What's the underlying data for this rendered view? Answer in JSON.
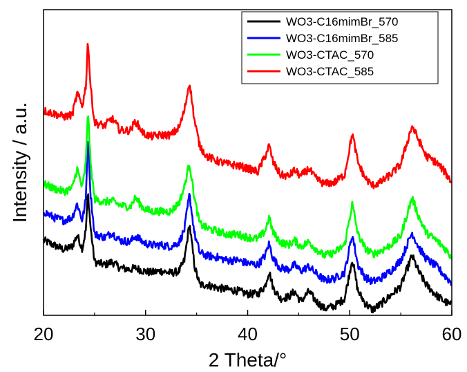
{
  "chart_data": {
    "type": "line",
    "title": "",
    "xlabel": "2 Theta/°",
    "ylabel": "Intensity / a.u.",
    "xlim": [
      20,
      60
    ],
    "ylim": [
      0,
      100
    ],
    "x_ticks": [
      20,
      30,
      40,
      50,
      60
    ],
    "y_ticks_shown": false,
    "grid": false,
    "legend_position": "top-right",
    "series": [
      {
        "name": "WO3-C16mimBr_570",
        "color": "#000000",
        "values": [
          [
            20,
            24.5
          ],
          [
            21,
            23.0
          ],
          [
            22,
            21.5
          ],
          [
            22.8,
            22.5
          ],
          [
            23.3,
            26.2
          ],
          [
            23.8,
            21.8
          ],
          [
            24.15,
            28.0
          ],
          [
            24.35,
            40.5
          ],
          [
            24.6,
            29.0
          ],
          [
            25.0,
            17.5
          ],
          [
            26,
            16.5
          ],
          [
            26.7,
            17.5
          ],
          [
            27.5,
            15.5
          ],
          [
            28.5,
            15.0
          ],
          [
            29.0,
            15.5
          ],
          [
            29.8,
            14.5
          ],
          [
            30.5,
            14.0
          ],
          [
            31.5,
            14.5
          ],
          [
            32.5,
            13.8
          ],
          [
            33.3,
            14.5
          ],
          [
            33.8,
            18.0
          ],
          [
            34.3,
            30.0
          ],
          [
            34.8,
            16.0
          ],
          [
            35.3,
            10.0
          ],
          [
            36,
            10.0
          ],
          [
            37,
            9.0
          ],
          [
            38,
            8.5
          ],
          [
            39,
            8.0
          ],
          [
            40,
            7.0
          ],
          [
            41,
            7.0
          ],
          [
            41.7,
            9.5
          ],
          [
            42.1,
            14.5
          ],
          [
            42.5,
            9.0
          ],
          [
            43.2,
            5.5
          ],
          [
            44.0,
            6.0
          ],
          [
            44.6,
            7.8
          ],
          [
            45.2,
            4.5
          ],
          [
            46.0,
            7.8
          ],
          [
            46.6,
            5.0
          ],
          [
            47.5,
            2.2
          ],
          [
            48.5,
            3.0
          ],
          [
            49.5,
            5.5
          ],
          [
            50.25,
            18.5
          ],
          [
            50.8,
            8.0
          ],
          [
            51.5,
            4.0
          ],
          [
            52.2,
            1.8
          ],
          [
            53.0,
            3.5
          ],
          [
            54.0,
            6.5
          ],
          [
            55.0,
            9.5
          ],
          [
            56.1,
            19.5
          ],
          [
            56.8,
            14.0
          ],
          [
            57.5,
            10.0
          ],
          [
            58.5,
            6.5
          ],
          [
            59.3,
            4.5
          ],
          [
            60,
            3.2
          ]
        ]
      },
      {
        "name": "WO3-C16mimBr_585",
        "color": "#0000ff",
        "values": [
          [
            20,
            34.0
          ],
          [
            21,
            32.0
          ],
          [
            22,
            31.0
          ],
          [
            22.8,
            32.0
          ],
          [
            23.3,
            36.5
          ],
          [
            23.8,
            31.0
          ],
          [
            24.15,
            38.0
          ],
          [
            24.35,
            60.0
          ],
          [
            24.6,
            40.0
          ],
          [
            25.0,
            26.5
          ],
          [
            26,
            25.5
          ],
          [
            26.7,
            27.0
          ],
          [
            27.5,
            24.5
          ],
          [
            28.5,
            24.0
          ],
          [
            29.0,
            26.0
          ],
          [
            29.8,
            23.8
          ],
          [
            30.5,
            23.0
          ],
          [
            31.5,
            23.0
          ],
          [
            32.5,
            22.5
          ],
          [
            33.3,
            24.0
          ],
          [
            33.8,
            28.0
          ],
          [
            34.3,
            39.5
          ],
          [
            34.8,
            26.5
          ],
          [
            35.3,
            20.5
          ],
          [
            36,
            19.5
          ],
          [
            37,
            19.0
          ],
          [
            38,
            18.0
          ],
          [
            39,
            18.0
          ],
          [
            40,
            17.0
          ],
          [
            41,
            16.5
          ],
          [
            41.7,
            19.5
          ],
          [
            42.1,
            23.5
          ],
          [
            42.5,
            18.5
          ],
          [
            43.2,
            15.5
          ],
          [
            44.0,
            15.0
          ],
          [
            44.6,
            16.5
          ],
          [
            45.2,
            14.5
          ],
          [
            46.0,
            16.0
          ],
          [
            46.6,
            14.0
          ],
          [
            47.5,
            11.5
          ],
          [
            48.5,
            12.0
          ],
          [
            49.5,
            14.0
          ],
          [
            50.25,
            26.5
          ],
          [
            50.8,
            16.5
          ],
          [
            51.5,
            12.5
          ],
          [
            52.2,
            11.0
          ],
          [
            53.0,
            12.0
          ],
          [
            54.0,
            14.5
          ],
          [
            55.0,
            18.0
          ],
          [
            56.1,
            27.0
          ],
          [
            56.8,
            22.0
          ],
          [
            57.5,
            18.5
          ],
          [
            58.5,
            16.0
          ],
          [
            59.3,
            13.0
          ],
          [
            60,
            10.5
          ]
        ]
      },
      {
        "name": "WO3-CTAC_570",
        "color": "#00ff00",
        "values": [
          [
            20,
            43.0
          ],
          [
            21,
            41.5
          ],
          [
            22,
            40.5
          ],
          [
            22.8,
            41.5
          ],
          [
            23.3,
            48.0
          ],
          [
            23.8,
            41.5
          ],
          [
            24.15,
            50.0
          ],
          [
            24.35,
            68.0
          ],
          [
            24.6,
            50.0
          ],
          [
            25.0,
            38.0
          ],
          [
            26,
            37.0
          ],
          [
            26.7,
            37.5
          ],
          [
            27.5,
            36.0
          ],
          [
            28.5,
            35.5
          ],
          [
            29.0,
            38.5
          ],
          [
            29.8,
            35.0
          ],
          [
            30.5,
            34.0
          ],
          [
            31.5,
            34.0
          ],
          [
            32.5,
            34.0
          ],
          [
            33.3,
            37.0
          ],
          [
            33.8,
            42.0
          ],
          [
            34.3,
            50.0
          ],
          [
            34.8,
            38.0
          ],
          [
            35.3,
            30.0
          ],
          [
            36,
            28.5
          ],
          [
            37,
            27.5
          ],
          [
            38,
            26.5
          ],
          [
            39,
            26.5
          ],
          [
            40,
            25.5
          ],
          [
            41,
            25.0
          ],
          [
            41.7,
            27.5
          ],
          [
            42.1,
            32.0
          ],
          [
            42.5,
            27.0
          ],
          [
            43.2,
            24.0
          ],
          [
            44.0,
            23.0
          ],
          [
            44.6,
            24.5
          ],
          [
            45.2,
            22.5
          ],
          [
            46.0,
            24.0
          ],
          [
            46.6,
            22.0
          ],
          [
            47.5,
            19.5
          ],
          [
            48.5,
            20.5
          ],
          [
            49.5,
            23.0
          ],
          [
            50.25,
            36.5
          ],
          [
            50.8,
            26.5
          ],
          [
            51.5,
            22.0
          ],
          [
            52.2,
            20.0
          ],
          [
            53.0,
            21.0
          ],
          [
            54.0,
            23.0
          ],
          [
            55.0,
            26.0
          ],
          [
            56.1,
            38.5
          ],
          [
            56.8,
            32.0
          ],
          [
            57.5,
            27.0
          ],
          [
            58.5,
            24.5
          ],
          [
            59.3,
            22.0
          ],
          [
            60,
            19.0
          ]
        ]
      },
      {
        "name": "WO3-CTAC_585",
        "color": "#ff0000",
        "values": [
          [
            20,
            67.0
          ],
          [
            21,
            66.0
          ],
          [
            22,
            65.0
          ],
          [
            22.8,
            65.5
          ],
          [
            23.3,
            72.5
          ],
          [
            23.8,
            68.5
          ],
          [
            24.15,
            75.0
          ],
          [
            24.35,
            90.5
          ],
          [
            24.6,
            75.0
          ],
          [
            25.0,
            63.0
          ],
          [
            26,
            62.0
          ],
          [
            26.7,
            64.5
          ],
          [
            27.5,
            60.5
          ],
          [
            28.5,
            60.5
          ],
          [
            29.0,
            63.5
          ],
          [
            29.8,
            59.5
          ],
          [
            30.5,
            58.5
          ],
          [
            31.5,
            59.0
          ],
          [
            32.5,
            59.0
          ],
          [
            33.3,
            61.5
          ],
          [
            33.8,
            67.0
          ],
          [
            34.3,
            76.5
          ],
          [
            34.8,
            63.5
          ],
          [
            35.3,
            55.5
          ],
          [
            36,
            52.0
          ],
          [
            37,
            50.5
          ],
          [
            38,
            49.5
          ],
          [
            39,
            49.0
          ],
          [
            40,
            48.0
          ],
          [
            41,
            47.0
          ],
          [
            41.7,
            52.0
          ],
          [
            42.1,
            55.5
          ],
          [
            42.5,
            50.0
          ],
          [
            43.2,
            46.0
          ],
          [
            44.0,
            45.5
          ],
          [
            44.6,
            47.5
          ],
          [
            45.2,
            45.5
          ],
          [
            46.0,
            48.0
          ],
          [
            46.6,
            45.0
          ],
          [
            47.5,
            43.0
          ],
          [
            48.5,
            43.5
          ],
          [
            49.5,
            46.0
          ],
          [
            50.25,
            59.5
          ],
          [
            50.8,
            50.0
          ],
          [
            51.5,
            45.0
          ],
          [
            52.2,
            42.5
          ],
          [
            53.0,
            43.5
          ],
          [
            54.0,
            46.0
          ],
          [
            55.0,
            49.5
          ],
          [
            56.1,
            62.0
          ],
          [
            56.8,
            57.0
          ],
          [
            57.5,
            52.0
          ],
          [
            58.5,
            50.0
          ],
          [
            59.3,
            47.0
          ],
          [
            60,
            43.5
          ]
        ]
      }
    ]
  }
}
